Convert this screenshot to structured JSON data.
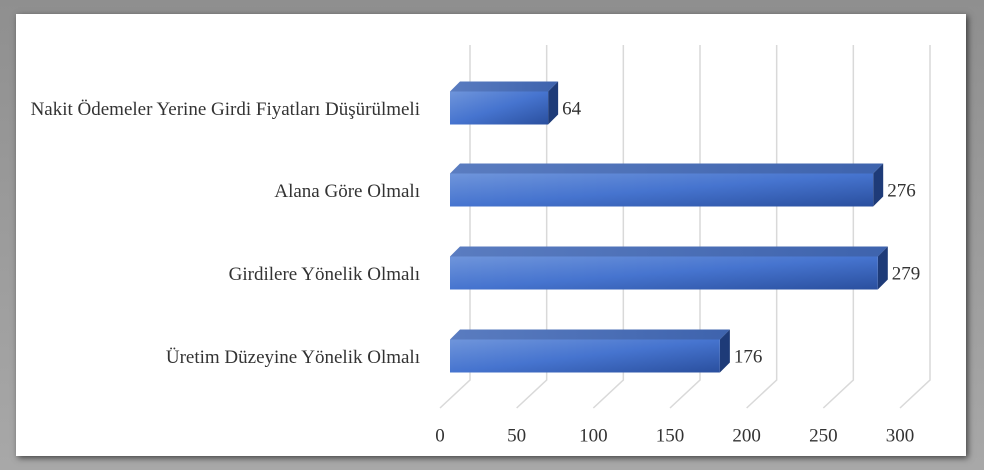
{
  "chart_data": {
    "type": "bar",
    "orientation": "horizontal",
    "categories": [
      "Nakit Ödemeler Yerine Girdi Fiyatları Düşürülmeli",
      "Alana Göre Olmalı",
      "Girdilere Yönelik Olmalı",
      "Üretim Düzeyine Yönelik Olmalı"
    ],
    "values": [
      64,
      276,
      279,
      176
    ],
    "color": "#4472c4",
    "xlim": [
      0,
      300
    ],
    "xticks": [
      0,
      50,
      100,
      150,
      200,
      250,
      300
    ],
    "grid": true
  }
}
